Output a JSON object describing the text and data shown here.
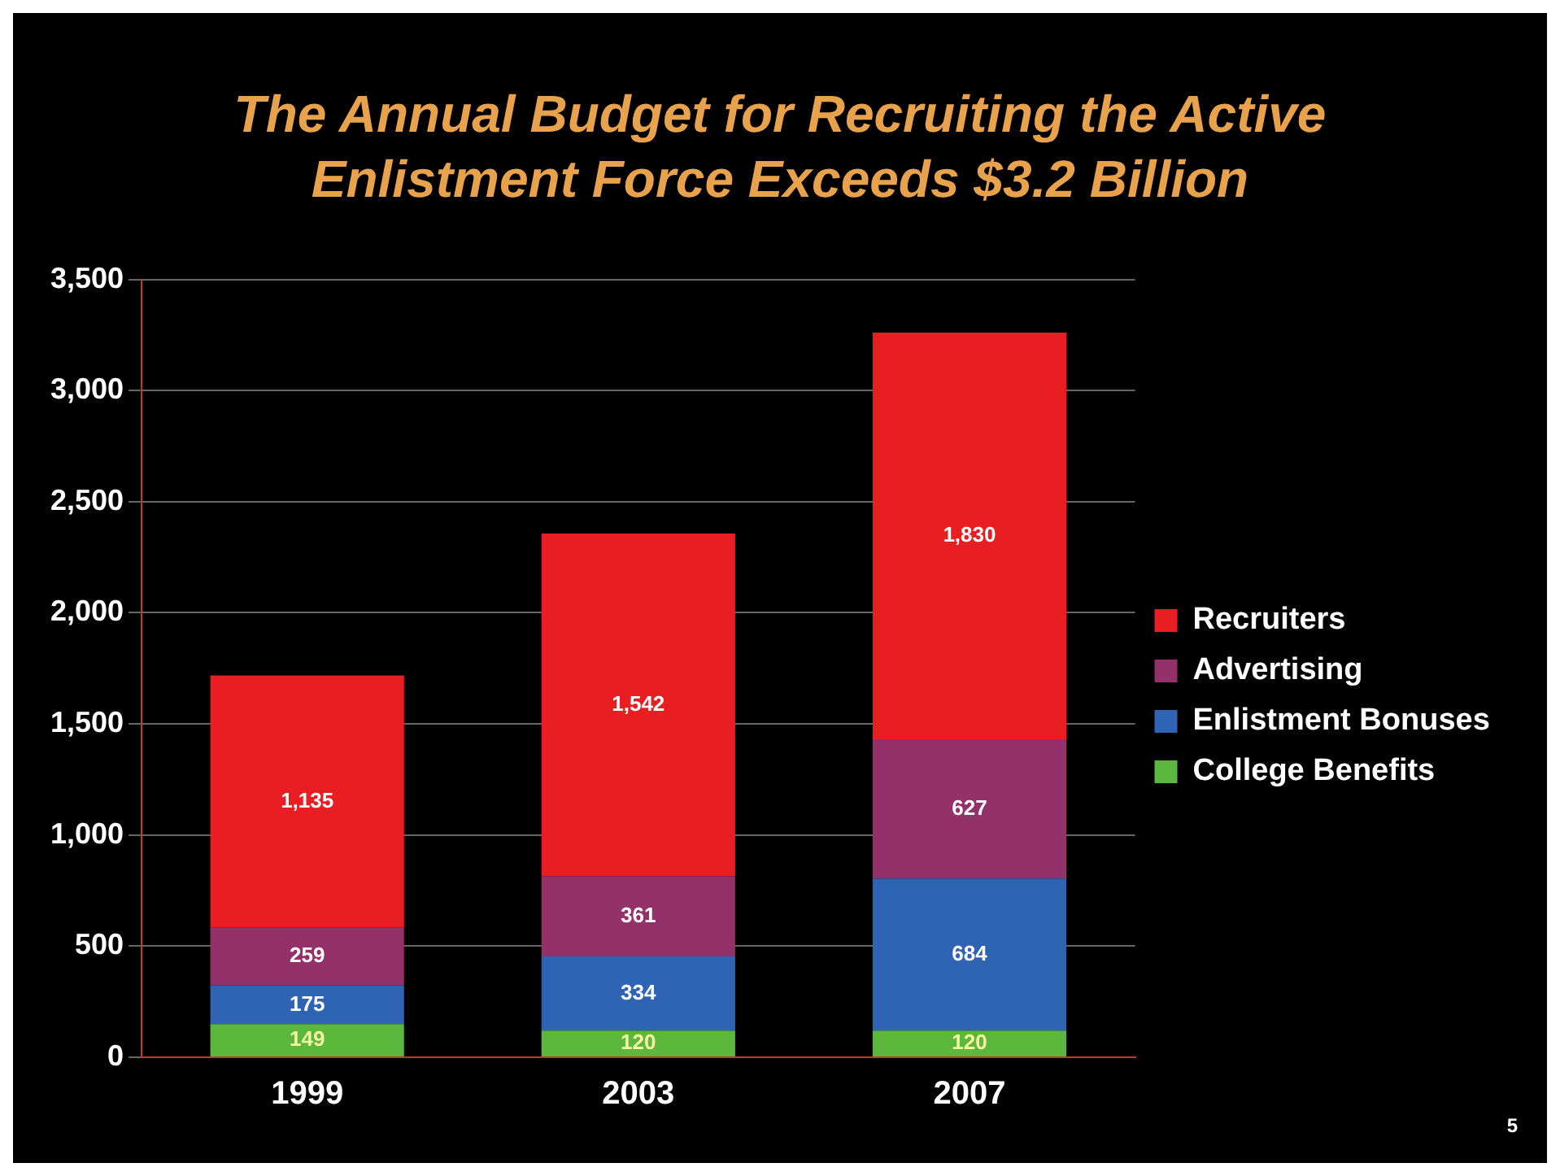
{
  "chart_data": {
    "type": "bar",
    "title": "The Annual Budget for Recruiting the Active Enlistment Force Exceeds $3.2 Billion",
    "categories": [
      "1999",
      "2003",
      "2007"
    ],
    "stacked": true,
    "legend": "right",
    "grid": "y",
    "ylim": [
      0,
      3500
    ],
    "yticks": [
      {
        "value": 0,
        "label": "0"
      },
      {
        "value": 500,
        "label": "500"
      },
      {
        "value": 1000,
        "label": "1,000"
      },
      {
        "value": 1500,
        "label": "1,500"
      },
      {
        "value": 2000,
        "label": "2,000"
      },
      {
        "value": 2500,
        "label": "2,500"
      },
      {
        "value": 3000,
        "label": "3,000"
      },
      {
        "value": 3500,
        "label": "3,500"
      }
    ],
    "series": [
      {
        "name": "College Benefits",
        "color": "#5cb83c",
        "values": [
          149,
          120,
          120
        ],
        "value_labels": [
          "149",
          "120",
          "120"
        ]
      },
      {
        "name": "Enlistment Bonuses",
        "color": "#2f64b4",
        "values": [
          175,
          334,
          684
        ],
        "value_labels": [
          "175",
          "334",
          "684"
        ]
      },
      {
        "name": "Advertising",
        "color": "#94306a",
        "values": [
          259,
          361,
          627
        ],
        "value_labels": [
          "259",
          "361",
          "627"
        ]
      },
      {
        "name": "Recruiters",
        "color": "#e81e22",
        "values": [
          1135,
          1542,
          1830
        ],
        "value_labels": [
          "1,135",
          "1,542",
          "1,830"
        ]
      }
    ],
    "annotations": [
      "5"
    ]
  }
}
